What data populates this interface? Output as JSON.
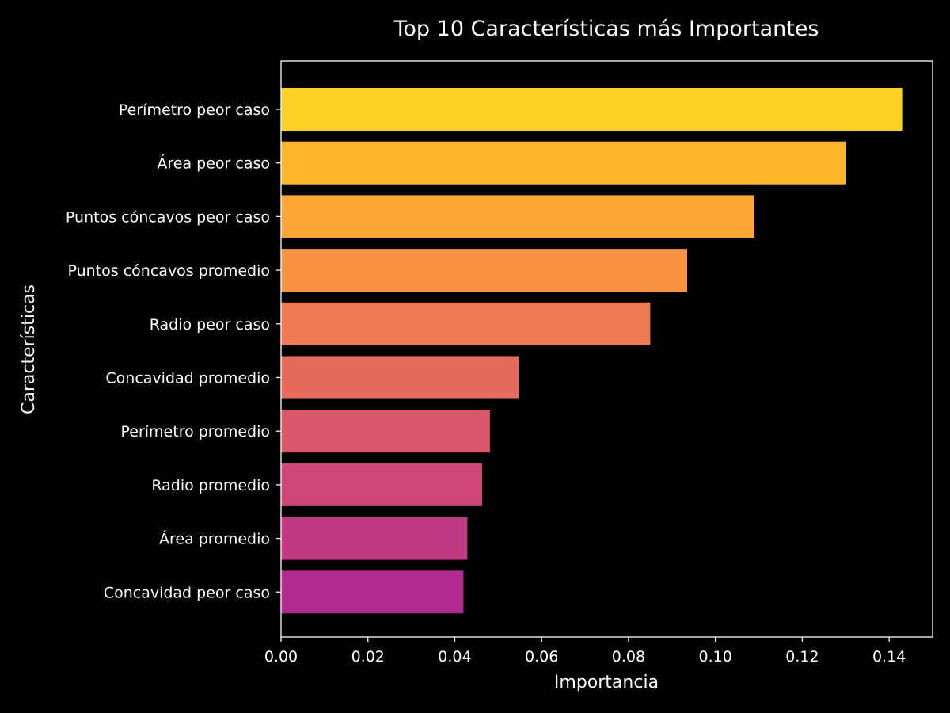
{
  "chart_data": {
    "type": "bar",
    "orientation": "horizontal",
    "title": "Top 10 Características más Importantes",
    "xlabel": "Importancia",
    "ylabel": "Características",
    "xlim": [
      0.0,
      0.15
    ],
    "xticks": [
      "0.00",
      "0.02",
      "0.04",
      "0.06",
      "0.08",
      "0.10",
      "0.12",
      "0.14"
    ],
    "xtick_values": [
      0.0,
      0.02,
      0.04,
      0.06,
      0.08,
      0.1,
      0.12,
      0.14
    ],
    "grid": false,
    "legend": "none",
    "background": "#000000",
    "foreground": "#ffffff",
    "categories": [
      "Perímetro peor caso",
      "Área peor caso",
      "Puntos cóncavos peor caso",
      "Puntos cóncavos promedio",
      "Radio peor caso",
      "Concavidad promedio",
      "Perímetro promedio",
      "Radio promedio",
      "Área promedio",
      "Concavidad peor caso"
    ],
    "values": [
      0.143,
      0.13,
      0.109,
      0.0935,
      0.085,
      0.0547,
      0.0481,
      0.0463,
      0.0429,
      0.042
    ],
    "colors": [
      "#fcd225",
      "#feb72d",
      "#fca636",
      "#f89441",
      "#ee7b51",
      "#e56b5d",
      "#d8576b",
      "#cc4778",
      "#c03a83",
      "#b12a90"
    ]
  }
}
